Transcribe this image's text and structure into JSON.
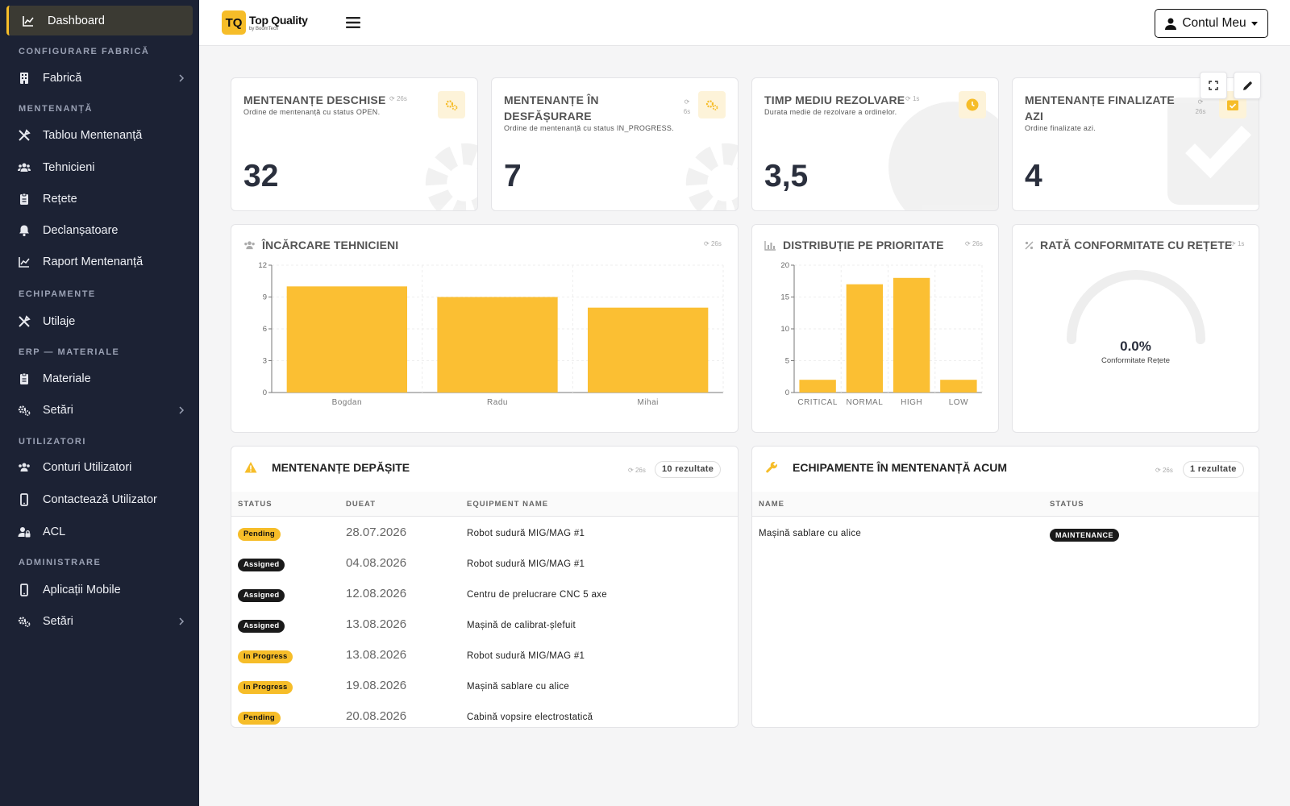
{
  "sidebar": {
    "active": "Dashboard",
    "sections": [
      {
        "title": "CONFIGURARE FABRICĂ",
        "items": [
          {
            "label": "Fabrică",
            "icon": "building-icon",
            "chevron": true
          }
        ]
      },
      {
        "title": "MENTENANȚĂ",
        "items": [
          {
            "label": "Tablou Mentenanță",
            "icon": "tools-icon"
          },
          {
            "label": "Tehnicieni",
            "icon": "users-icon"
          },
          {
            "label": "Rețete",
            "icon": "clipboard-icon"
          },
          {
            "label": "Declanșatoare",
            "icon": "bell-icon"
          },
          {
            "label": "Raport Mentenanță",
            "icon": "chart-line-icon"
          }
        ]
      },
      {
        "title": "ECHIPAMENTE",
        "items": [
          {
            "label": "Utilaje",
            "icon": "tools-icon"
          }
        ]
      },
      {
        "title": "ERP — MATERIALE",
        "items": [
          {
            "label": "Materiale",
            "icon": "clipboard-icon"
          },
          {
            "label": "Setări",
            "icon": "gears-icon",
            "chevron": true
          }
        ]
      },
      {
        "title": "UTILIZATORI",
        "items": [
          {
            "label": "Conturi Utilizatori",
            "icon": "users-icon"
          },
          {
            "label": "Contactează Utilizator",
            "icon": "mobile-icon"
          },
          {
            "label": "ACL",
            "icon": "user-lock-icon"
          }
        ]
      },
      {
        "title": "ADMINISTRARE",
        "items": [
          {
            "label": "Aplicații Mobile",
            "icon": "mobile-icon"
          },
          {
            "label": "Setări",
            "icon": "gears-icon",
            "chevron": true
          }
        ]
      }
    ]
  },
  "topbar": {
    "logo_mark": "TQ",
    "logo_name": "Top Quality",
    "logo_sub": "by BoomTech",
    "account_label": "Contul Meu"
  },
  "kpis": [
    {
      "title": "MENTENANȚE DESCHISE",
      "subtitle": "Ordine de mentenanță cu status OPEN.",
      "value": "32",
      "refresh": "26s",
      "icon": "gears-icon"
    },
    {
      "title": "MENTENANȚE ÎN DESFĂȘURARE",
      "subtitle": "Ordine de mentenanță cu status IN_PROGRESS.",
      "value": "7",
      "refresh": "6s",
      "icon": "gears-icon"
    },
    {
      "title": "TIMP MEDIU REZOLVARE",
      "subtitle": "Durata medie de rezolvare a ordinelor.",
      "value": "3,5",
      "refresh": "1s",
      "icon": "clock-icon"
    },
    {
      "title": "MENTENANȚE FINALIZATE AZI",
      "subtitle": "Ordine finalizate azi.",
      "value": "4",
      "refresh": "26s",
      "icon": "calendar-check-icon"
    }
  ],
  "charts": {
    "technicians": {
      "title": "ÎNCĂRCARE TEHNICIENI",
      "refresh": "26s"
    },
    "priority": {
      "title": "DISTRIBUȚIE PE PRIORITATE",
      "refresh": "26s"
    },
    "conformity": {
      "title": "RATĂ CONFORMITATE CU REȚETE",
      "refresh": "1s",
      "value_label": "0.0%",
      "caption": "Conformitate Rețete",
      "value": 0.0
    }
  },
  "chart_data": [
    {
      "type": "bar",
      "title": "ÎNCĂRCARE TEHNICIENI",
      "categories": [
        "Bogdan",
        "Radu",
        "Mihai"
      ],
      "values": [
        10,
        9,
        8
      ],
      "ylim": [
        0,
        12
      ],
      "yticks": [
        0,
        3,
        6,
        9,
        12
      ],
      "grid": true,
      "color": "#fbbf33"
    },
    {
      "type": "bar",
      "title": "DISTRIBUȚIE PE PRIORITATE",
      "categories": [
        "CRITICAL",
        "NORMAL",
        "HIGH",
        "LOW"
      ],
      "values": [
        2,
        17,
        18,
        2
      ],
      "ylim": [
        0,
        20
      ],
      "yticks": [
        0,
        5,
        10,
        15,
        20
      ],
      "grid": true,
      "color": "#fbbf33"
    }
  ],
  "overdue": {
    "title": "MENTENANȚE DEPĂȘITE",
    "refresh": "26s",
    "count_label": "10 rezultate",
    "columns": [
      "STATUS",
      "DUEAT",
      "EQUIPMENT NAME"
    ],
    "rows": [
      {
        "status": "Pending",
        "style": "yellow",
        "due": "28.07.2026",
        "equipment": "Robot sudură MIG/MAG #1"
      },
      {
        "status": "Assigned",
        "style": "dark",
        "due": "04.08.2026",
        "equipment": "Robot sudură MIG/MAG #1"
      },
      {
        "status": "Assigned",
        "style": "dark",
        "due": "12.08.2026",
        "equipment": "Centru de prelucrare CNC 5 axe"
      },
      {
        "status": "Assigned",
        "style": "dark",
        "due": "13.08.2026",
        "equipment": "Mașină de calibrat-șlefuit"
      },
      {
        "status": "In Progress",
        "style": "yellow",
        "due": "13.08.2026",
        "equipment": "Robot sudură MIG/MAG #1"
      },
      {
        "status": "In Progress",
        "style": "yellow",
        "due": "19.08.2026",
        "equipment": "Mașină sablare cu alice"
      },
      {
        "status": "Pending",
        "style": "yellow",
        "due": "20.08.2026",
        "equipment": "Cabină vopsire electrostatică"
      }
    ]
  },
  "equipment_now": {
    "title": "ECHIPAMENTE ÎN MENTENANȚĂ ACUM",
    "refresh": "26s",
    "count_label": "1 rezultate",
    "columns": [
      "NAME",
      "STATUS"
    ],
    "rows": [
      {
        "name": "Mașină sablare cu alice",
        "status": "MAINTENANCE"
      }
    ]
  },
  "colors": {
    "accent": "#f6bd29",
    "sidebar": "#1c2234",
    "bar": "#fbbf33"
  }
}
